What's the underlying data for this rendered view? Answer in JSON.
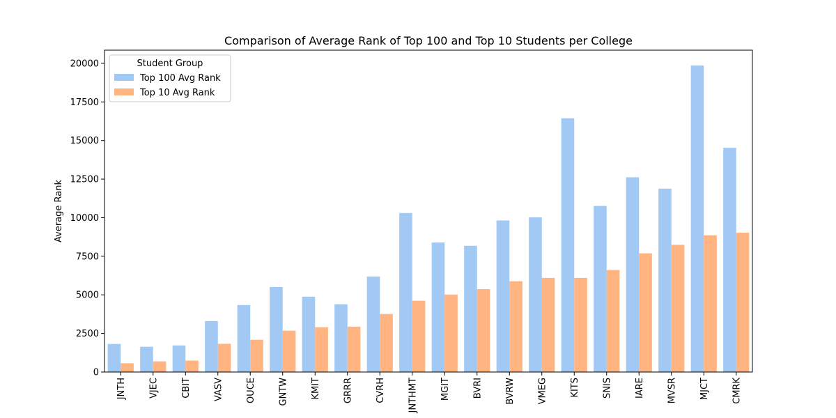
{
  "chart_data": {
    "type": "bar",
    "title": "Comparison of Average Rank of Top 100 and Top 10 Students per College",
    "xlabel": "",
    "ylabel": "Average Rank",
    "ylim": [
      0,
      20854
    ],
    "yticks": [
      0,
      2500,
      5000,
      7500,
      10000,
      12500,
      15000,
      17500,
      20000
    ],
    "grid": false,
    "legend": {
      "title": "Student Group",
      "position": "top-left"
    },
    "categories": [
      "JNTH",
      "VJEC",
      "CBIT",
      "VASV",
      "OUCE",
      "GNTW",
      "KMIT",
      "GRRR",
      "CVRH",
      "JNTHMT",
      "MGIT",
      "BVRI",
      "BVRW",
      "VMEG",
      "KITS",
      "SNIS",
      "IARE",
      "MVSR",
      "MJCT",
      "CMRK"
    ],
    "series": [
      {
        "name": "Top 100 Avg Rank",
        "color": "#a1c9f4",
        "values": [
          1820,
          1640,
          1720,
          3300,
          4340,
          5510,
          4880,
          4390,
          6190,
          10300,
          8390,
          8180,
          9820,
          10020,
          16440,
          10760,
          12620,
          11880,
          19860,
          14530
        ]
      },
      {
        "name": "Top 10 Avg Rank",
        "color": "#ffb482",
        "values": [
          570,
          690,
          740,
          1830,
          2090,
          2680,
          2900,
          2940,
          3760,
          4620,
          5020,
          5370,
          5880,
          6100,
          6100,
          6610,
          7690,
          8240,
          8860,
          9030
        ]
      }
    ]
  }
}
